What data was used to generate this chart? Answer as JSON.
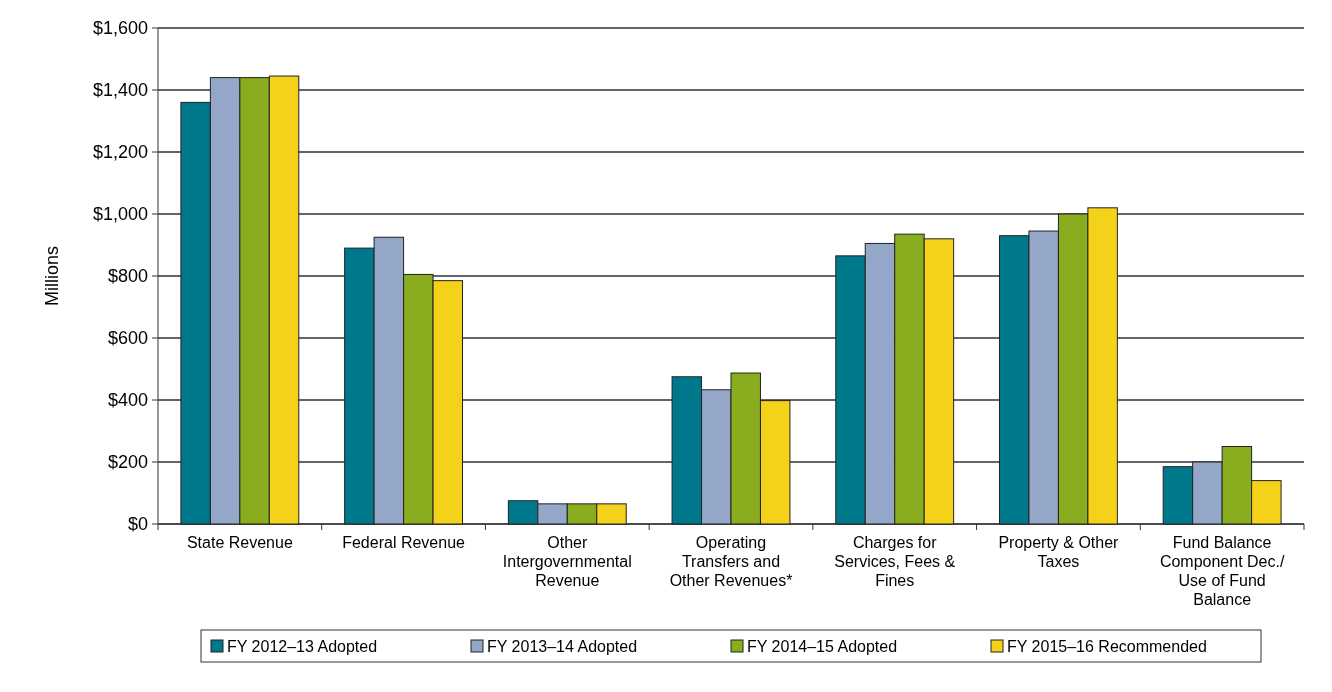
{
  "chart_data": {
    "type": "bar",
    "ylabel": "Millions",
    "categories": [
      "State Revenue",
      "Federal Revenue",
      "Other Intergovernmental Revenue",
      "Operating Transfers and Other Revenues*",
      "Charges for Services, Fees & Fines",
      "Property & Other Taxes",
      "Fund Balance Component Dec./ Use of Fund Balance"
    ],
    "series": [
      {
        "name": "FY 2012–13 Adopted",
        "color": "#00788c",
        "values": [
          1360,
          890,
          75,
          475,
          865,
          930,
          185
        ]
      },
      {
        "name": "FY 2013–14 Adopted",
        "color": "#94a7c9",
        "values": [
          1440,
          925,
          65,
          433,
          905,
          945,
          200
        ]
      },
      {
        "name": "FY 2014–15 Adopted",
        "color": "#8aac1f",
        "values": [
          1440,
          805,
          65,
          487,
          935,
          1000,
          250
        ]
      },
      {
        "name": "FY 2015–16 Recommended",
        "color": "#f5d21a",
        "values": [
          1445,
          785,
          65,
          398,
          920,
          1020,
          140
        ]
      }
    ],
    "ylim": [
      0,
      1600
    ],
    "yticks": [
      {
        "value": 0,
        "label": "$0"
      },
      {
        "value": 200,
        "label": "$200"
      },
      {
        "value": 400,
        "label": "$400"
      },
      {
        "value": 600,
        "label": "$600"
      },
      {
        "value": 800,
        "label": "$800"
      },
      {
        "value": 1000,
        "label": "$1,000"
      },
      {
        "value": 1200,
        "label": "$1,200"
      },
      {
        "value": 1400,
        "label": "$1,400"
      },
      {
        "value": 1600,
        "label": "$1,600"
      }
    ],
    "grid": "y",
    "legend": "bottom"
  }
}
